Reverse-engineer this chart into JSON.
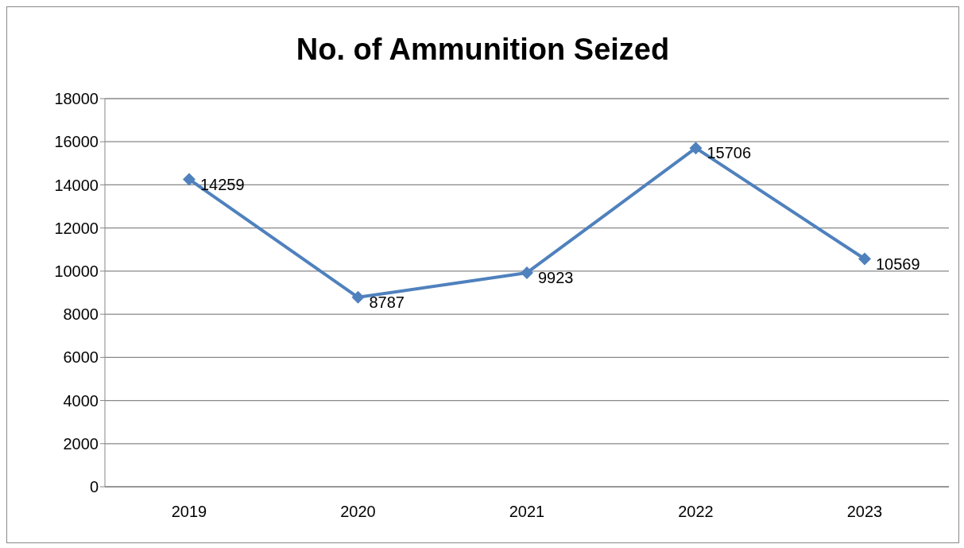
{
  "chart_data": {
    "type": "line",
    "title": "No. of Ammunition Seized",
    "categories": [
      "2019",
      "2020",
      "2021",
      "2022",
      "2023"
    ],
    "series": [
      {
        "color": "#4f81bd",
        "values": [
          14259,
          8787,
          9923,
          15706,
          10569
        ]
      }
    ],
    "ylim": [
      0,
      18000
    ],
    "yticks": [
      0,
      2000,
      4000,
      6000,
      8000,
      10000,
      12000,
      14000,
      16000,
      18000
    ],
    "grid": "y",
    "marker": "diamond",
    "line_style": "solid",
    "data_labels": true
  }
}
